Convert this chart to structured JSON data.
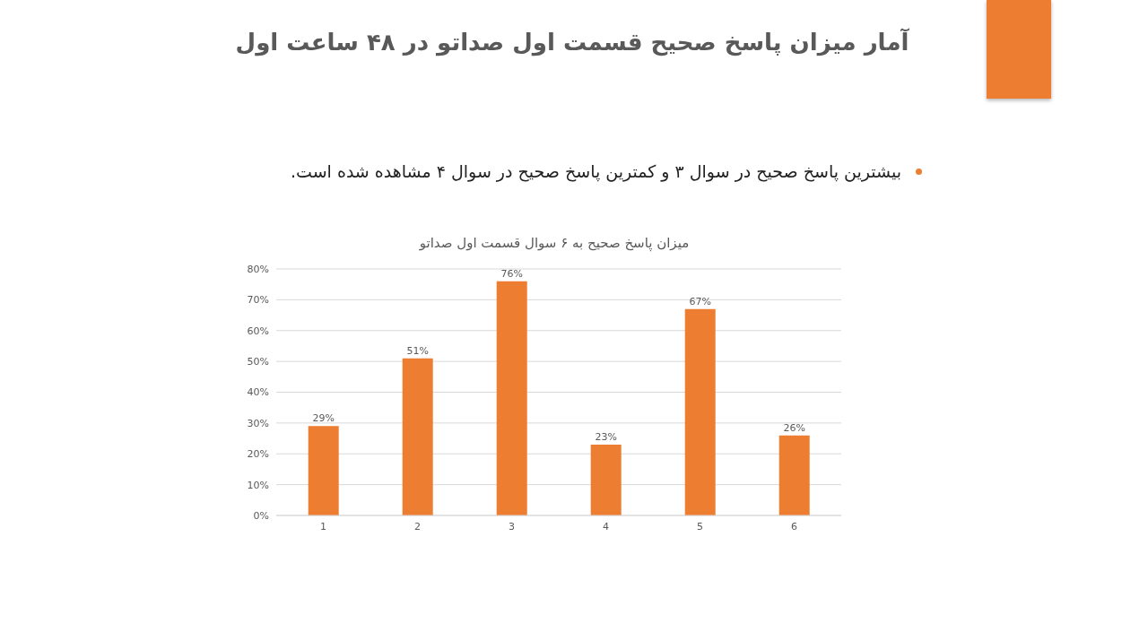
{
  "chart_data": {
    "type": "bar",
    "title": "میزان پاسخ صحیح به ۶ سوال قسمت اول صداتو",
    "annotations": [
      "آمار میزان پاسخ صحیح قسمت اول صداتو در ۴۸ ساعت اول",
      "بیشترین پاسخ صحیح در سوال ۳ و کمترین پاسخ  صحیح در سوال ۴ مشاهده شده است."
    ],
    "categories": [
      "1",
      "2",
      "3",
      "4",
      "5",
      "6"
    ],
    "values": [
      29,
      51,
      76,
      23,
      67,
      26
    ],
    "value_labels": [
      "29%",
      "51%",
      "76%",
      "23%",
      "67%",
      "26%"
    ],
    "color": "#ed7d31",
    "ylim": [
      0,
      80
    ],
    "yticks": [
      {
        "value": 0,
        "label": "0%"
      },
      {
        "value": 10,
        "label": "10%"
      },
      {
        "value": 20,
        "label": "20%"
      },
      {
        "value": 30,
        "label": "30%"
      },
      {
        "value": 40,
        "label": "40%"
      },
      {
        "value": 50,
        "label": "50%"
      },
      {
        "value": 60,
        "label": "60%"
      },
      {
        "value": 70,
        "label": "70%"
      },
      {
        "value": 80,
        "label": "80%"
      }
    ],
    "grid": "y"
  }
}
